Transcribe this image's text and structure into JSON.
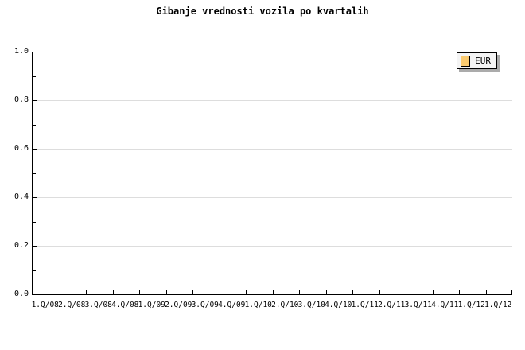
{
  "title": "Gibanje vrednosti vozila po kvartalih",
  "legend": {
    "label": "EUR"
  },
  "y_axis": {
    "tick_labels": [
      "1.0",
      "0.8",
      "0.6",
      "0.4",
      "0.2",
      "0.0"
    ]
  },
  "x_axis": {
    "tick_labels": [
      "1.Q/08",
      "2.Q/08",
      "3.Q/08",
      "4.Q/08",
      "1.Q/09",
      "2.Q/09",
      "3.Q/09",
      "4.Q/09",
      "1.Q/10",
      "2.Q/10",
      "3.Q/10",
      "4.Q/10",
      "1.Q/11",
      "2.Q/11",
      "3.Q/11",
      "4.Q/11",
      "1.Q/12",
      "1.Q/12"
    ]
  },
  "colors": {
    "background": "#ffffff",
    "text": "#000000",
    "axis": "#000000",
    "grid": "#dddddd",
    "series_eur": "#fbcb70",
    "legend_bg": "#f4f4f4",
    "legend_border": "#000000",
    "legend_shadow": "#ababab"
  },
  "chart_data": {
    "type": "line",
    "title": "Gibanje vrednosti vozila po kvartalih",
    "categories": [
      "1.Q/08",
      "2.Q/08",
      "3.Q/08",
      "4.Q/08",
      "1.Q/09",
      "2.Q/09",
      "3.Q/09",
      "4.Q/09",
      "1.Q/10",
      "2.Q/10",
      "3.Q/10",
      "4.Q/10",
      "1.Q/11",
      "2.Q/11",
      "3.Q/11",
      "4.Q/11",
      "1.Q/12",
      "1.Q/12"
    ],
    "series": [
      {
        "name": "EUR",
        "color": "#fbcb70",
        "values": []
      }
    ],
    "xlabel": "",
    "ylabel": "",
    "ylim": [
      0.0,
      1.0
    ],
    "y_tick_step": 0.2,
    "y_minor_tick_step": 0.1,
    "grid": "horizontal-only",
    "legend_position": "top-right-inside",
    "plot_empty": true
  }
}
